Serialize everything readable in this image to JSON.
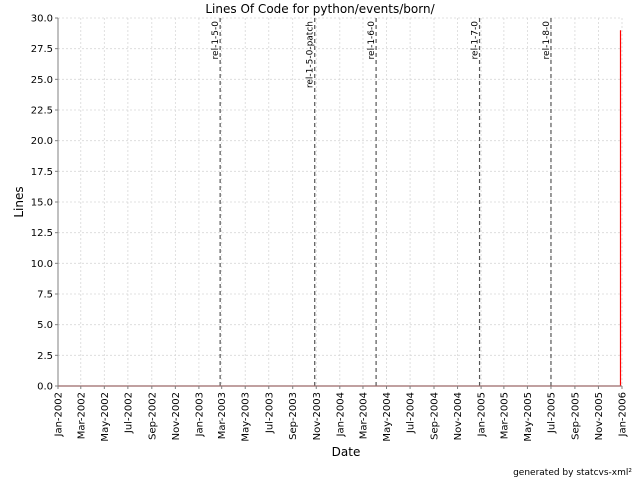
{
  "chart_data": {
    "type": "line",
    "title": "Lines Of Code for python/events/born/",
    "xlabel": "Date",
    "ylabel": "Lines",
    "ylim": [
      0,
      30.0
    ],
    "y_ticks": [
      "0.0",
      "2.5",
      "5.0",
      "7.5",
      "10.0",
      "12.5",
      "15.0",
      "17.5",
      "20.0",
      "22.5",
      "25.0",
      "27.5",
      "30.0"
    ],
    "x_range": [
      "2002-01",
      "2006-01"
    ],
    "x_ticks": [
      "Jan-2002",
      "Mar-2002",
      "May-2002",
      "Jul-2002",
      "Sep-2002",
      "Nov-2002",
      "Jan-2003",
      "Mar-2003",
      "May-2003",
      "Jul-2003",
      "Sep-2003",
      "Nov-2003",
      "Jan-2004",
      "Mar-2004",
      "May-2004",
      "Jul-2004",
      "Sep-2004",
      "Nov-2004",
      "Jan-2005",
      "Mar-2005",
      "May-2005",
      "Jul-2005",
      "Sep-2005",
      "Nov-2005",
      "Jan-2006"
    ],
    "grid": true,
    "series": [
      {
        "color": "#ff0000",
        "points": [
          {
            "x": "2002-01",
            "y": 0
          },
          {
            "x": "2005-12-28",
            "y": 0
          },
          {
            "x": "2005-12-28",
            "y": 29
          }
        ]
      }
    ],
    "markers": [
      {
        "label": "rel-1-5-0",
        "x": "2003-02-25"
      },
      {
        "label": "rel-1-5-0-patch",
        "x": "2003-10-28"
      },
      {
        "label": "rel-1-6-0",
        "x": "2004-04-04"
      },
      {
        "label": "rel-1-7-0",
        "x": "2004-12-28"
      },
      {
        "label": "rel-1-8-0",
        "x": "2005-07-01"
      }
    ],
    "footer": "generated by statcvs-xml²"
  }
}
